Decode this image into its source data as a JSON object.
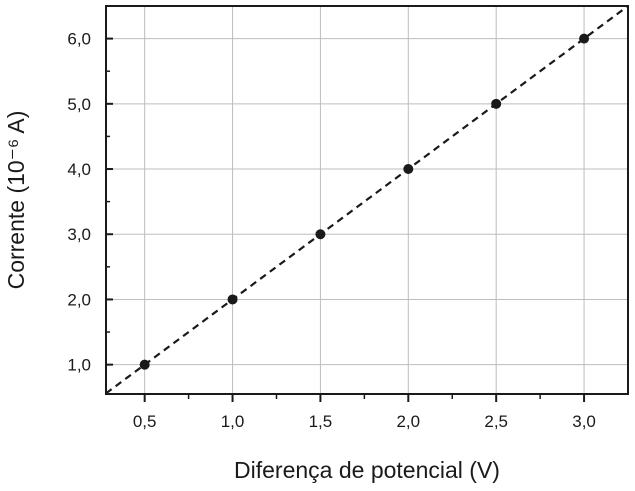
{
  "chart_data": {
    "type": "scatter",
    "xlabel": "Diferença de potencial (V)",
    "ylabel": "Corrente (10⁻⁶ A)",
    "xlim": [
      0.28,
      3.25
    ],
    "ylim": [
      0.55,
      6.5
    ],
    "x_ticks": [
      0.5,
      1.0,
      1.5,
      2.0,
      2.5,
      3.0
    ],
    "x_tick_labels": [
      "0,5",
      "1,0",
      "1,5",
      "2,0",
      "2,5",
      "3,0"
    ],
    "y_ticks": [
      1.0,
      2.0,
      3.0,
      4.0,
      5.0,
      6.0
    ],
    "y_tick_labels": [
      "1,0",
      "2,0",
      "3,0",
      "4,0",
      "5,0",
      "6,0"
    ],
    "grid": true,
    "series": [
      {
        "x": [
          0.5,
          1.0,
          1.5,
          2.0,
          2.5,
          3.0
        ],
        "y": [
          1.0,
          2.0,
          3.0,
          4.0,
          5.0,
          6.0
        ],
        "color": "#1a1a1a"
      }
    ],
    "fit_line": {
      "style": "dashed",
      "slope": 2.0,
      "intercept": 0.0,
      "color": "#1a1a1a"
    }
  }
}
